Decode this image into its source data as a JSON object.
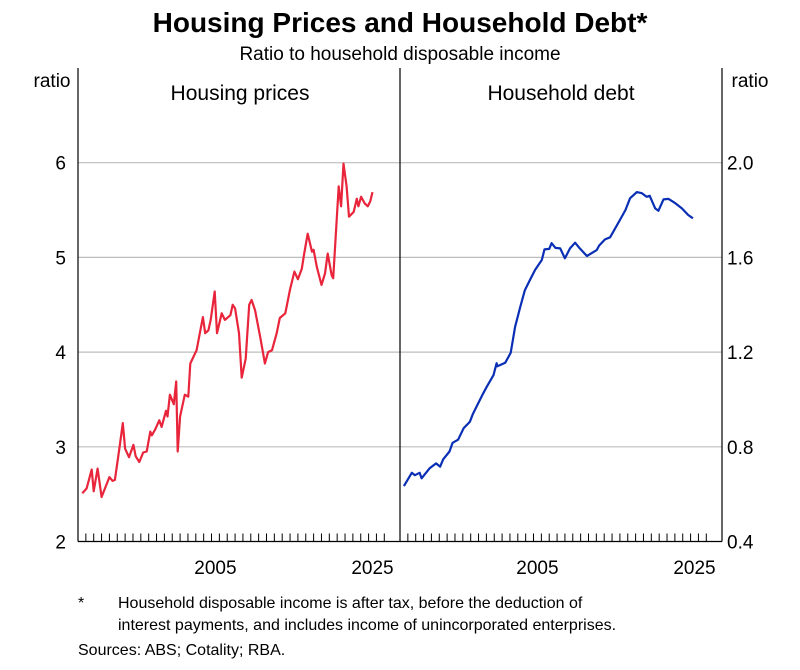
{
  "chart_data": {
    "title": "Housing Prices and Household Debt*",
    "subtitle": "Ratio to household disposable income",
    "footnote_marker": "*",
    "footnote": [
      "Household disposable income is after tax, before the deduction of",
      "interest payments, and includes income of unincorporated enterprises."
    ],
    "sources": "Sources: ABS; Cotality; RBA.",
    "xlim": [
      1988,
      2029
    ],
    "x_ticks": [
      "2005",
      "2025"
    ],
    "x_tick_values": [
      2005,
      2025
    ],
    "grid": true,
    "panels": [
      {
        "type": "line",
        "title": "Housing prices",
        "ylabel": "ratio",
        "axis_side": "left",
        "ylim": [
          2,
          6
        ],
        "y_ticks": [
          "2",
          "3",
          "4",
          "5",
          "6"
        ],
        "y_tick_values": [
          2,
          3,
          4,
          5,
          6
        ],
        "color": "#e8253b",
        "x": [
          1988.55,
          1989.1,
          1989.75,
          1990.0,
          1990.5,
          1991.0,
          1992.0,
          1992.4,
          1992.7,
          1993.3,
          1993.7,
          1994.0,
          1994.5,
          1995.05,
          1995.35,
          1995.8,
          1996.3,
          1996.75,
          1997.2,
          1997.4,
          1997.8,
          1998.35,
          1998.65,
          1999.2,
          1999.4,
          1999.7,
          2000.2,
          2000.5,
          2000.7,
          2001.0,
          2001.6,
          2002.05,
          2002.3,
          2003.1,
          2003.9,
          2004.2,
          2004.6,
          2004.9,
          2005.4,
          2005.7,
          2006.3,
          2006.7,
          2007.4,
          2007.7,
          2008.0,
          2008.5,
          2008.85,
          2009.35,
          2009.8,
          2010.1,
          2010.55,
          2011.2,
          2011.8,
          2012.2,
          2012.7,
          2013.3,
          2013.7,
          2014.4,
          2015.0,
          2015.55,
          2016.0,
          2016.5,
          2016.8,
          2017.25,
          2017.8,
          2018.0,
          2018.4,
          2019.0,
          2019.45,
          2019.8,
          2020.3,
          2020.5,
          2021.2,
          2021.5,
          2021.8,
          2022.2,
          2022.5,
          2023.1,
          2023.5,
          2023.7,
          2024.05,
          2024.5,
          2024.9,
          2025.2,
          2025.5
        ],
        "y": [
          2.51,
          2.56,
          2.76,
          2.53,
          2.77,
          2.47,
          2.68,
          2.64,
          2.65,
          3.0,
          3.25,
          2.98,
          2.89,
          3.02,
          2.9,
          2.84,
          2.94,
          2.95,
          3.16,
          3.12,
          3.18,
          3.28,
          3.21,
          3.38,
          3.32,
          3.55,
          3.45,
          3.69,
          2.95,
          3.32,
          3.55,
          3.53,
          3.88,
          4.02,
          4.37,
          4.2,
          4.23,
          4.34,
          4.64,
          4.2,
          4.41,
          4.34,
          4.39,
          4.5,
          4.46,
          4.2,
          3.73,
          3.93,
          4.5,
          4.55,
          4.44,
          4.16,
          3.88,
          4.0,
          4.02,
          4.2,
          4.36,
          4.41,
          4.66,
          4.85,
          4.77,
          4.88,
          5.04,
          5.25,
          5.06,
          5.08,
          4.9,
          4.71,
          4.83,
          5.04,
          4.81,
          4.78,
          5.75,
          5.54,
          5.99,
          5.75,
          5.43,
          5.48,
          5.62,
          5.54,
          5.64,
          5.57,
          5.54,
          5.59,
          5.69
        ]
      },
      {
        "type": "line",
        "title": "Household debt",
        "ylabel": "ratio",
        "axis_side": "right",
        "ylim": [
          0.4,
          2.0
        ],
        "y_ticks": [
          "0.4",
          "0.8",
          "1.2",
          "1.6",
          "2.0"
        ],
        "y_tick_values": [
          0.4,
          0.8,
          1.2,
          1.6,
          2.0
        ],
        "color": "#0a2fb5",
        "x": [
          1988.5,
          1989.5,
          1989.9,
          1990.5,
          1990.75,
          1991.8,
          1992.6,
          1993.1,
          1993.5,
          1994.3,
          1994.7,
          1995.4,
          1996.1,
          1996.9,
          1997.3,
          1997.85,
          1998.5,
          1999.05,
          1999.9,
          2000.3,
          2000.4,
          2001.4,
          2002.1,
          2002.65,
          2003.3,
          2003.9,
          2004.55,
          2005.2,
          2006.05,
          2006.4,
          2007.0,
          2007.3,
          2007.8,
          2008.4,
          2009.0,
          2009.65,
          2010.3,
          2010.9,
          2011.8,
          2013.05,
          2013.35,
          2014.1,
          2014.75,
          2015.4,
          2016.0,
          2016.7,
          2017.3,
          2018.15,
          2018.8,
          2019.4,
          2019.8,
          2020.5,
          2020.9,
          2021.55,
          2022.2,
          2023.05,
          2023.9,
          2024.7,
          2025.3
        ],
        "y": [
          0.634,
          0.69,
          0.68,
          0.69,
          0.667,
          0.71,
          0.73,
          0.716,
          0.747,
          0.78,
          0.817,
          0.83,
          0.878,
          0.906,
          0.94,
          0.977,
          1.02,
          1.054,
          1.103,
          1.153,
          1.14,
          1.155,
          1.197,
          1.307,
          1.39,
          1.462,
          1.505,
          1.547,
          1.589,
          1.634,
          1.636,
          1.66,
          1.64,
          1.638,
          1.596,
          1.638,
          1.662,
          1.638,
          1.606,
          1.631,
          1.65,
          1.676,
          1.685,
          1.723,
          1.758,
          1.8,
          1.85,
          1.876,
          1.871,
          1.856,
          1.86,
          1.807,
          1.797,
          1.845,
          1.847,
          1.829,
          1.807,
          1.779,
          1.765
        ]
      }
    ]
  }
}
